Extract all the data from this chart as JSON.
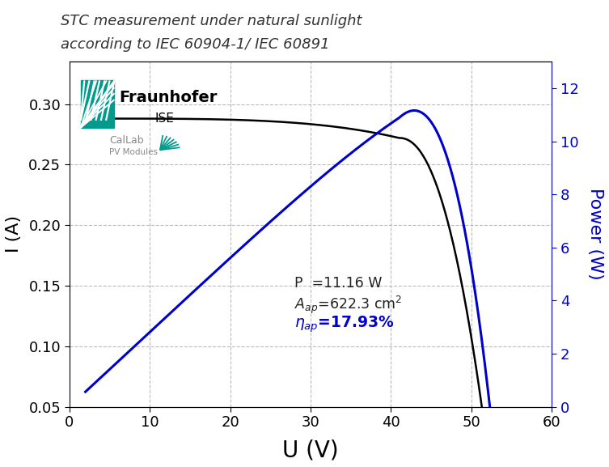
{
  "title_line1": "STC measurement under natural sunlight",
  "title_line2": "according to IEC 60904-1/ IEC 60891",
  "xlabel": "U (V)",
  "ylabel_left": "I (A)",
  "ylabel_right": "Power (W)",
  "xlim": [
    0,
    60
  ],
  "ylim_left": [
    0.05,
    0.335
  ],
  "ylim_right": [
    0,
    13
  ],
  "xticks": [
    0,
    10,
    20,
    30,
    40,
    50,
    60
  ],
  "yticks_left": [
    0.05,
    0.1,
    0.15,
    0.2,
    0.25,
    0.3
  ],
  "yticks_right": [
    0,
    2,
    4,
    6,
    8,
    10,
    12
  ],
  "iv_color": "#000000",
  "power_color": "#0000CC",
  "grid_color": "#bbbbbb",
  "background_color": "#ffffff",
  "fraunhofer_teal": "#009B8D",
  "Isc": 0.288,
  "Voc": 52.3,
  "Impp": 0.272,
  "Vmpp": 41.0,
  "Pmpp": 11.16,
  "V_start": 2.0,
  "I_start": 0.075
}
